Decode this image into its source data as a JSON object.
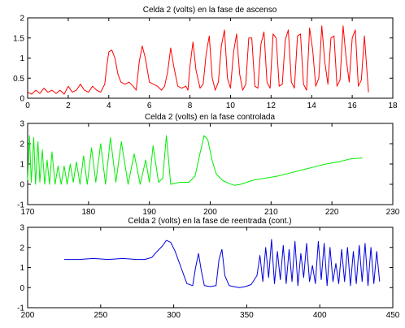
{
  "chart_data": [
    {
      "type": "line",
      "title": "Celda 2 (volts) en la fase de ascenso",
      "xlabel": "",
      "ylabel": "",
      "xlim": [
        0,
        18
      ],
      "ylim": [
        0,
        2
      ],
      "xticks": [
        0,
        2,
        4,
        6,
        8,
        10,
        12,
        14,
        16,
        18
      ],
      "yticks": [
        0,
        0.5,
        1,
        1.5,
        2
      ],
      "xtick_labels": [
        "0",
        "2",
        "4",
        "6",
        "8",
        "10",
        "12",
        "14",
        "16",
        "18"
      ],
      "ytick_labels": [
        "0",
        "0.5",
        "1",
        "1.5",
        "2"
      ],
      "grid": false,
      "color": "#ff0000",
      "series": [
        {
          "x": [
            0.0,
            0.2,
            0.4,
            0.6,
            0.8,
            1.0,
            1.2,
            1.4,
            1.6,
            1.8,
            2.0,
            2.2,
            2.4,
            2.6,
            2.8,
            3.0,
            3.2,
            3.4,
            3.6,
            3.8,
            3.9,
            4.0,
            4.15,
            4.3,
            4.45,
            4.6,
            4.8,
            5.0,
            5.2,
            5.35,
            5.5,
            5.65,
            5.8,
            6.0,
            6.2,
            6.4,
            6.6,
            6.75,
            6.9,
            7.05,
            7.2,
            7.4,
            7.6,
            7.8,
            7.9,
            8.0,
            8.15,
            8.3,
            8.5,
            8.65,
            8.8,
            8.95,
            9.1,
            9.25,
            9.4,
            9.55,
            9.7,
            9.85,
            10.0,
            10.15,
            10.3,
            10.45,
            10.6,
            10.75,
            10.9,
            11.05,
            11.2,
            11.35,
            11.5,
            11.65,
            11.8,
            11.95,
            12.1,
            12.25,
            12.4,
            12.55,
            12.7,
            12.85,
            13.0,
            13.15,
            13.3,
            13.45,
            13.6,
            13.75,
            13.9,
            14.05,
            14.2,
            14.35,
            14.5,
            14.65,
            14.8,
            14.95,
            15.1,
            15.25,
            15.4,
            15.55,
            15.7,
            15.85,
            16.0,
            16.15,
            16.3,
            16.45,
            16.6,
            16.8
          ],
          "y": [
            0.15,
            0.1,
            0.2,
            0.12,
            0.25,
            0.15,
            0.2,
            0.12,
            0.2,
            0.1,
            0.3,
            0.15,
            0.2,
            0.35,
            0.2,
            0.15,
            0.3,
            0.2,
            0.15,
            0.35,
            0.8,
            1.15,
            1.2,
            1.0,
            0.6,
            0.4,
            0.35,
            0.4,
            0.3,
            0.2,
            0.9,
            1.3,
            1.0,
            0.4,
            0.35,
            0.3,
            0.2,
            0.3,
            0.65,
            1.25,
            0.8,
            0.3,
            0.25,
            0.3,
            0.2,
            0.8,
            1.4,
            0.7,
            0.25,
            0.35,
            1.1,
            1.55,
            0.5,
            0.2,
            0.4,
            1.3,
            1.7,
            0.5,
            0.25,
            1.15,
            1.6,
            0.6,
            0.2,
            0.35,
            1.5,
            1.5,
            0.3,
            0.25,
            1.35,
            1.65,
            0.4,
            0.25,
            1.6,
            1.5,
            0.3,
            0.35,
            1.45,
            1.7,
            0.4,
            0.25,
            1.55,
            1.6,
            0.35,
            0.2,
            1.75,
            1.2,
            0.3,
            0.5,
            1.8,
            0.9,
            0.35,
            1.5,
            1.55,
            0.3,
            0.45,
            1.8,
            1.0,
            0.4,
            1.5,
            1.7,
            0.3,
            0.45,
            1.55,
            0.15
          ]
        }
      ]
    },
    {
      "type": "line",
      "title": "Celda 2 (volts) en la fase controlada",
      "xlabel": "",
      "ylabel": "",
      "xlim": [
        170,
        230
      ],
      "ylim": [
        -1,
        3
      ],
      "xticks": [
        170,
        180,
        190,
        200,
        210,
        220,
        230
      ],
      "yticks": [
        -1,
        0,
        1,
        2,
        3
      ],
      "xtick_labels": [
        "170",
        "180",
        "190",
        "200",
        "210",
        "220",
        "230"
      ],
      "ytick_labels": [
        "-1",
        "0",
        "1",
        "2",
        "3"
      ],
      "grid": false,
      "color": "#00ee00",
      "series": [
        {
          "x": [
            170.0,
            170.3,
            170.6,
            171.0,
            171.3,
            171.7,
            172.0,
            172.4,
            172.8,
            173.2,
            173.6,
            174.0,
            174.5,
            175.0,
            175.5,
            176.0,
            176.5,
            177.0,
            177.5,
            178.0,
            178.6,
            179.2,
            179.8,
            180.5,
            181.2,
            182.0,
            182.8,
            183.6,
            184.5,
            185.4,
            186.5,
            187.5,
            188.5,
            189.4,
            190.0,
            190.6,
            191.5,
            192.2,
            192.8,
            193.5,
            195.0,
            196.5,
            197.5,
            198.3,
            199.0,
            199.6,
            200.3,
            201.0,
            202.0,
            203.0,
            204.0,
            205.0,
            206.0,
            207.0,
            209.0,
            211.0,
            213.0,
            215.0,
            217.0,
            219.0,
            221.0,
            223.0,
            225.0
          ],
          "y": [
            0.2,
            2.4,
            0.1,
            2.3,
            0.0,
            2.1,
            0.1,
            1.7,
            0.0,
            1.2,
            0.0,
            1.6,
            0.0,
            0.9,
            0.0,
            0.9,
            0.0,
            1.0,
            0.1,
            1.1,
            0.0,
            1.4,
            0.0,
            1.8,
            0.1,
            2.0,
            0.0,
            2.3,
            0.1,
            2.1,
            0.0,
            1.5,
            0.0,
            1.2,
            0.1,
            1.9,
            0.1,
            0.3,
            2.4,
            0.0,
            0.1,
            0.1,
            0.4,
            1.5,
            2.4,
            2.2,
            1.2,
            0.5,
            0.2,
            0.05,
            -0.05,
            0.0,
            0.1,
            0.2,
            0.3,
            0.4,
            0.55,
            0.7,
            0.85,
            1.0,
            1.1,
            1.25,
            1.3
          ]
        }
      ]
    },
    {
      "type": "line",
      "title": "Celda 2 (volts) en la fase de reentrada (cont.)",
      "xlabel": "",
      "ylabel": "",
      "xlim": [
        200,
        450
      ],
      "ylim": [
        -1,
        3
      ],
      "xticks": [
        200,
        250,
        300,
        350,
        400,
        450
      ],
      "yticks": [
        -1,
        0,
        1,
        2,
        3
      ],
      "xtick_labels": [
        "200",
        "250",
        "300",
        "350",
        "400",
        "450"
      ],
      "ytick_labels": [
        "-1",
        "0",
        "1",
        "2",
        "3"
      ],
      "grid": false,
      "color": "#0000dd",
      "series": [
        {
          "x": [
            225,
            235,
            245,
            255,
            265,
            275,
            280,
            285,
            288,
            292,
            295,
            298,
            301,
            305,
            309,
            313,
            315,
            317,
            319,
            321,
            325,
            329,
            331,
            333,
            335,
            338,
            341,
            345,
            349,
            353,
            357,
            359,
            361,
            363,
            365,
            367,
            369,
            371,
            373,
            375,
            377,
            379,
            381,
            383,
            385,
            387,
            389,
            391,
            393,
            395,
            397,
            399,
            401,
            403,
            405,
            407,
            409,
            411,
            413,
            415,
            417,
            419,
            421,
            423,
            425,
            427,
            429,
            431,
            433,
            435,
            437,
            439,
            441
          ],
          "y": [
            1.4,
            1.4,
            1.45,
            1.4,
            1.45,
            1.4,
            1.4,
            1.5,
            1.75,
            2.05,
            2.35,
            2.25,
            1.8,
            1.0,
            0.2,
            0.1,
            1.0,
            1.7,
            0.8,
            0.1,
            0.05,
            0.1,
            1.4,
            1.9,
            0.6,
            0.1,
            0.05,
            0.0,
            0.05,
            0.15,
            0.6,
            1.6,
            0.3,
            2.0,
            0.5,
            2.4,
            0.2,
            1.8,
            0.4,
            2.1,
            0.2,
            1.9,
            0.3,
            2.3,
            0.1,
            1.7,
            0.5,
            2.2,
            0.3,
            1.1,
            0.2,
            2.3,
            0.4,
            2.2,
            0.1,
            2.0,
            0.3,
            1.2,
            0.2,
            1.9,
            0.3,
            2.0,
            0.1,
            1.8,
            0.2,
            2.1,
            0.3,
            2.2,
            0.1,
            2.0,
            0.2,
            1.8,
            0.3
          ]
        }
      ]
    }
  ]
}
